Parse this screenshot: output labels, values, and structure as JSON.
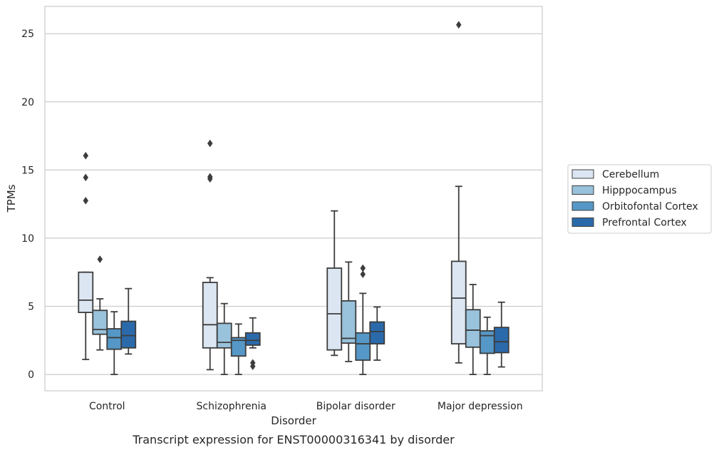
{
  "chart_data": {
    "type": "box",
    "title": "",
    "caption": "Transcript expression for ENST00000316341 by disorder",
    "xlabel": "Disorder",
    "ylabel": "TPMs",
    "ylim": [
      -1.2,
      27
    ],
    "yticks": [
      0,
      5,
      10,
      15,
      20,
      25
    ],
    "grid": "horizontal",
    "legend_position": "right",
    "categories": [
      "Control",
      "Schizophrenia",
      "Bipolar disorder",
      "Major depression"
    ],
    "series": [
      {
        "name": "Cerebellum",
        "color": "#dbe6f2",
        "boxes": [
          {
            "whisker_low": 1.1,
            "q1": 4.55,
            "median": 5.45,
            "q3": 7.5,
            "whisker_high": 7.5,
            "outliers": [
              12.75,
              14.45,
              16.05
            ]
          },
          {
            "whisker_low": 0.35,
            "q1": 1.95,
            "median": 3.65,
            "q3": 6.75,
            "whisker_high": 7.1,
            "outliers": [
              14.35,
              14.5,
              16.95
            ]
          },
          {
            "whisker_low": 1.4,
            "q1": 1.8,
            "median": 4.45,
            "q3": 7.8,
            "whisker_high": 12.0,
            "outliers": []
          },
          {
            "whisker_low": 0.85,
            "q1": 2.25,
            "median": 5.6,
            "q3": 8.3,
            "whisker_high": 13.8,
            "outliers": [
              25.65
            ]
          }
        ]
      },
      {
        "name": "Hipppocampus",
        "color": "#99c2dc",
        "boxes": [
          {
            "whisker_low": 1.8,
            "q1": 2.95,
            "median": 3.3,
            "q3": 4.7,
            "whisker_high": 5.55,
            "outliers": [
              8.45
            ]
          },
          {
            "whisker_low": 0.0,
            "q1": 1.95,
            "median": 2.35,
            "q3": 3.75,
            "whisker_high": 5.2,
            "outliers": []
          },
          {
            "whisker_low": 0.95,
            "q1": 2.3,
            "median": 2.65,
            "q3": 5.4,
            "whisker_high": 8.25,
            "outliers": []
          },
          {
            "whisker_low": 0.0,
            "q1": 2.0,
            "median": 3.25,
            "q3": 4.75,
            "whisker_high": 6.6,
            "outliers": []
          }
        ]
      },
      {
        "name": "Orbitofontal Cortex",
        "color": "#5597c6",
        "boxes": [
          {
            "whisker_low": 0.0,
            "q1": 1.85,
            "median": 2.7,
            "q3": 3.35,
            "whisker_high": 4.6,
            "outliers": []
          },
          {
            "whisker_low": 0.0,
            "q1": 1.35,
            "median": 2.5,
            "q3": 2.7,
            "whisker_high": 3.7,
            "outliers": []
          },
          {
            "whisker_low": 0.0,
            "q1": 1.05,
            "median": 2.25,
            "q3": 3.05,
            "whisker_high": 5.95,
            "outliers": [
              7.35,
              7.8
            ]
          },
          {
            "whisker_low": 0.0,
            "q1": 1.55,
            "median": 2.85,
            "q3": 3.2,
            "whisker_high": 4.2,
            "outliers": []
          }
        ]
      },
      {
        "name": "Prefrontal Cortex",
        "color": "#2b6aaa",
        "boxes": [
          {
            "whisker_low": 1.5,
            "q1": 1.95,
            "median": 2.85,
            "q3": 3.9,
            "whisker_high": 6.3,
            "outliers": []
          },
          {
            "whisker_low": 1.95,
            "q1": 2.15,
            "median": 2.5,
            "q3": 3.05,
            "whisker_high": 4.15,
            "outliers": [
              0.6,
              0.85
            ]
          },
          {
            "whisker_low": 1.05,
            "q1": 2.25,
            "median": 3.15,
            "q3": 3.85,
            "whisker_high": 4.95,
            "outliers": []
          },
          {
            "whisker_low": 0.55,
            "q1": 1.6,
            "median": 2.4,
            "q3": 3.45,
            "whisker_high": 5.3,
            "outliers": []
          }
        ]
      }
    ]
  }
}
